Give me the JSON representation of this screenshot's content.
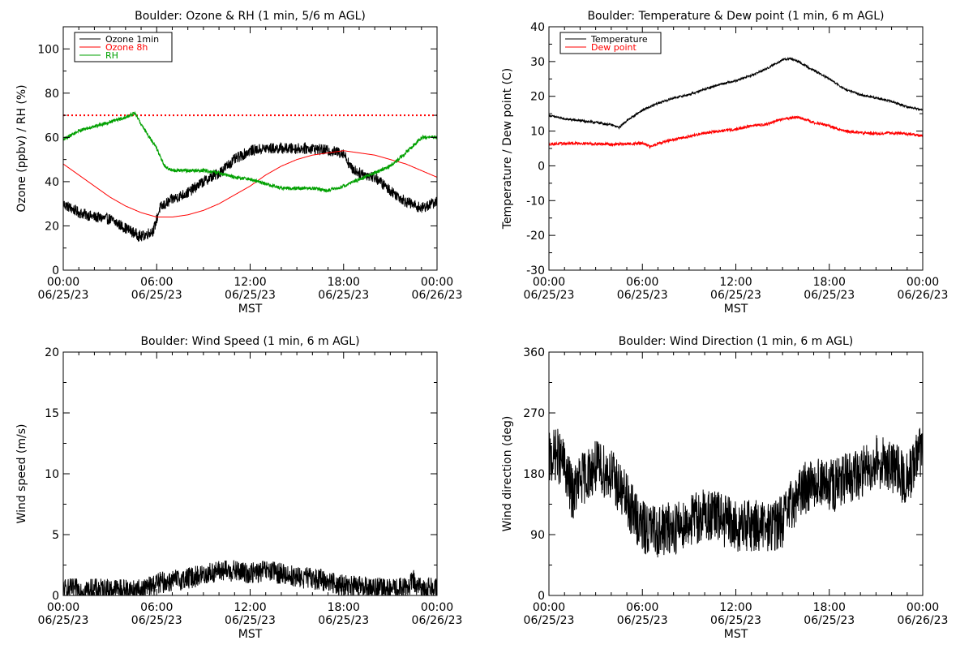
{
  "chart_data": [
    {
      "id": "ozone_rh",
      "type": "line",
      "title": "Boulder: Ozone & RH (1 min, 5/6 m AGL)",
      "xlabel": "MST",
      "ylabel": "Ozone (ppbv) / RH (%)",
      "ylim": [
        0,
        110
      ],
      "yticks": [
        0,
        20,
        40,
        60,
        80,
        100
      ],
      "x_ticks": [
        {
          "hour": 0,
          "time": "00:00",
          "date": "06/25/23"
        },
        {
          "hour": 6,
          "time": "06:00",
          "date": "06/25/23"
        },
        {
          "hour": 12,
          "time": "12:00",
          "date": "06/25/23"
        },
        {
          "hour": 18,
          "time": "18:00",
          "date": "06/25/23"
        },
        {
          "hour": 24,
          "time": "00:00",
          "date": "06/26/23"
        }
      ],
      "legend": {
        "placement": "top-left",
        "entries": [
          {
            "label": "Ozone 1min",
            "color": "#000000"
          },
          {
            "label": "Ozone 8h",
            "color": "#ff0000"
          },
          {
            "label": "RH",
            "color": "#00a000"
          }
        ]
      },
      "reference_lines": [
        {
          "y": 70,
          "color": "#ff0000",
          "style": "dotted"
        }
      ],
      "series": [
        {
          "name": "Ozone 1min",
          "color": "#000000",
          "noise": 2.5,
          "hours": [
            0,
            1,
            2,
            3,
            4,
            5,
            5.8,
            6.2,
            7,
            8,
            9,
            10,
            11,
            12,
            13,
            14,
            15,
            16,
            17,
            18,
            18.5,
            19,
            20,
            21,
            22,
            23,
            24
          ],
          "values": [
            30,
            26,
            24,
            23,
            19,
            15,
            18,
            28,
            32,
            35,
            40,
            44,
            50,
            54,
            55,
            55,
            55,
            55,
            54,
            53,
            46,
            44,
            42,
            36,
            31,
            28,
            31
          ]
        },
        {
          "name": "Ozone 8h",
          "color": "#ff0000",
          "noise": 0,
          "hours": [
            0,
            1,
            2,
            3,
            4,
            5,
            6,
            7,
            8,
            9,
            10,
            11,
            12,
            13,
            14,
            15,
            16,
            17,
            18,
            19,
            20,
            21,
            22,
            23,
            24
          ],
          "values": [
            48,
            43,
            38,
            33,
            29,
            26,
            24,
            24,
            25,
            27,
            30,
            34,
            38,
            43,
            47,
            50,
            52,
            53,
            54,
            53,
            52,
            50,
            48,
            45,
            42
          ]
        },
        {
          "name": "RH",
          "color": "#00a000",
          "noise": 0.8,
          "hours": [
            0,
            1,
            2,
            3,
            4,
            4.6,
            5,
            6,
            6.5,
            7,
            8,
            9,
            10,
            11,
            12,
            13,
            14,
            15,
            16,
            17,
            18,
            19,
            20,
            21,
            22,
            23,
            24
          ],
          "values": [
            59,
            63,
            65,
            67,
            69,
            71,
            66,
            55,
            47,
            45,
            45,
            45,
            44,
            42,
            41,
            39,
            37,
            37,
            37,
            36,
            38,
            41,
            44,
            47,
            53,
            60,
            60
          ]
        }
      ]
    },
    {
      "id": "temp_dew",
      "type": "line",
      "title": "Boulder: Temperature & Dew point (1 min, 6 m AGL)",
      "xlabel": "MST",
      "ylabel": "Temperature / Dew point (C)",
      "ylim": [
        -30,
        40
      ],
      "yticks": [
        -30,
        -20,
        -10,
        0,
        10,
        20,
        30,
        40
      ],
      "x_ticks": [
        {
          "hour": 0,
          "time": "00:00",
          "date": "06/25/23"
        },
        {
          "hour": 6,
          "time": "06:00",
          "date": "06/25/23"
        },
        {
          "hour": 12,
          "time": "12:00",
          "date": "06/25/23"
        },
        {
          "hour": 18,
          "time": "18:00",
          "date": "06/25/23"
        },
        {
          "hour": 24,
          "time": "00:00",
          "date": "06/26/23"
        }
      ],
      "legend": {
        "placement": "top-left",
        "entries": [
          {
            "label": "Temperature",
            "color": "#000000"
          },
          {
            "label": "Dew point",
            "color": "#ff0000"
          }
        ]
      },
      "reference_lines": [],
      "series": [
        {
          "name": "Temperature",
          "color": "#000000",
          "noise": 0.3,
          "hours": [
            0,
            1,
            2,
            3,
            4,
            4.5,
            5,
            6,
            7,
            8,
            9,
            10,
            11,
            12,
            13,
            14,
            15,
            15.5,
            16,
            17,
            18,
            19,
            20,
            21,
            22,
            23,
            24
          ],
          "values": [
            14.5,
            13.5,
            13,
            12.5,
            11.8,
            11,
            13,
            16,
            18,
            19.5,
            20.5,
            22,
            23.5,
            24.5,
            26,
            28,
            30.5,
            30.8,
            30,
            27.5,
            25,
            22,
            20.5,
            19.5,
            18.5,
            17,
            16
          ]
        },
        {
          "name": "Dew point",
          "color": "#ff0000",
          "noise": 0.4,
          "hours": [
            0,
            2,
            4,
            5,
            6,
            6.5,
            7,
            8,
            9,
            10,
            11,
            12,
            13,
            14,
            15,
            16,
            17,
            18,
            19,
            20,
            21,
            22,
            23,
            24
          ],
          "values": [
            6.3,
            6.5,
            6.2,
            6.3,
            6.5,
            5.5,
            6.5,
            7.5,
            8.5,
            9.5,
            10,
            10.5,
            11.5,
            12,
            13.5,
            14,
            12.5,
            11.5,
            10,
            9.5,
            9.3,
            9.5,
            9.2,
            8.6
          ]
        }
      ]
    },
    {
      "id": "wind_speed",
      "type": "line",
      "title": "Boulder: Wind Speed (1 min, 6 m AGL)",
      "xlabel": "MST",
      "ylabel": "Wind speed (m/s)",
      "ylim": [
        0,
        20
      ],
      "yticks": [
        0,
        5,
        10,
        15,
        20
      ],
      "x_ticks": [
        {
          "hour": 0,
          "time": "00:00",
          "date": "06/25/23"
        },
        {
          "hour": 6,
          "time": "06:00",
          "date": "06/25/23"
        },
        {
          "hour": 12,
          "time": "12:00",
          "date": "06/25/23"
        },
        {
          "hour": 18,
          "time": "18:00",
          "date": "06/25/23"
        },
        {
          "hour": 24,
          "time": "00:00",
          "date": "06/26/23"
        }
      ],
      "legend": null,
      "reference_lines": [],
      "series": [
        {
          "name": "",
          "color": "#000000",
          "noise": 0.9,
          "clip_min": 0,
          "hours": [
            0,
            2,
            4,
            5,
            6,
            7,
            8,
            9,
            10,
            11,
            12,
            13,
            14,
            15,
            16,
            17,
            18,
            19,
            20,
            21,
            22,
            22.5,
            23,
            24
          ],
          "values": [
            0.5,
            0.5,
            0.5,
            0.4,
            1.0,
            1.2,
            1.4,
            1.7,
            2.0,
            2.0,
            1.8,
            2.0,
            1.8,
            1.5,
            1.4,
            1.2,
            0.8,
            0.7,
            0.6,
            0.5,
            0.6,
            1.2,
            0.5,
            0.8
          ]
        }
      ]
    },
    {
      "id": "wind_dir",
      "type": "line",
      "title": "Boulder: Wind Direction (1 min, 6 m AGL)",
      "xlabel": "MST",
      "ylabel": "Wind direction (deg)",
      "ylim": [
        0,
        360
      ],
      "yticks": [
        0,
        90,
        180,
        270,
        360
      ],
      "x_ticks": [
        {
          "hour": 0,
          "time": "00:00",
          "date": "06/25/23"
        },
        {
          "hour": 6,
          "time": "06:00",
          "date": "06/25/23"
        },
        {
          "hour": 12,
          "time": "12:00",
          "date": "06/25/23"
        },
        {
          "hour": 18,
          "time": "18:00",
          "date": "06/25/23"
        },
        {
          "hour": 24,
          "time": "00:00",
          "date": "06/26/23"
        }
      ],
      "legend": null,
      "reference_lines": [],
      "series": [
        {
          "name": "",
          "color": "#000000",
          "noise": 40,
          "clip_min": 0,
          "clip_max": 360,
          "hours": [
            0,
            0.5,
            1,
            1.5,
            2,
            3,
            4,
            5,
            6,
            7,
            8,
            9,
            10,
            11,
            12,
            13,
            14,
            15,
            16,
            17,
            18,
            19,
            20,
            21,
            22,
            23,
            24
          ],
          "values": [
            200,
            210,
            190,
            150,
            170,
            190,
            180,
            140,
            100,
            95,
            100,
            110,
            120,
            115,
            100,
            105,
            100,
            110,
            150,
            170,
            160,
            170,
            180,
            200,
            190,
            170,
            220
          ]
        }
      ]
    }
  ]
}
